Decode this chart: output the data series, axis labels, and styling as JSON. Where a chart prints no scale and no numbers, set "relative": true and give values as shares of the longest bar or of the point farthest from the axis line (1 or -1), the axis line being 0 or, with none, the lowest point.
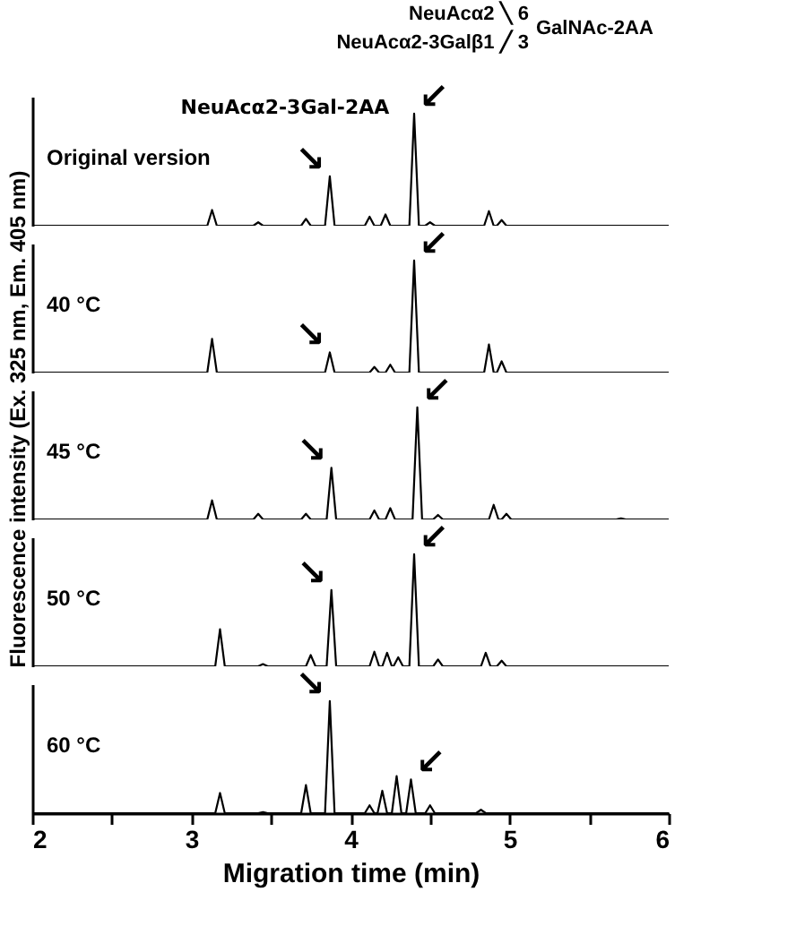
{
  "chart_data": [
    {
      "type": "line",
      "relative": true,
      "xlim": [
        2,
        6
      ],
      "tick_labels": false,
      "series": [
        {
          "color": "#000000",
          "x": [
            2,
            3.1,
            3.13,
            3.16,
            3.39,
            3.42,
            3.45,
            3.69,
            3.72,
            3.75,
            3.84,
            3.87,
            3.9,
            4.09,
            4.12,
            4.15,
            4.19,
            4.22,
            4.25,
            4.37,
            4.4,
            4.43,
            4.47,
            4.5,
            4.53,
            4.84,
            4.87,
            4.9,
            4.92,
            4.95,
            4.98,
            6
          ],
          "values": [
            0,
            0,
            0.14,
            0,
            0,
            0.03,
            0,
            0,
            0.06,
            0,
            0,
            0.44,
            0,
            0,
            0.08,
            0,
            0,
            0.1,
            0,
            0,
            1,
            0,
            0,
            0.03,
            0,
            0,
            0.13,
            0,
            0,
            0.05,
            0,
            0
          ]
        }
      ],
      "annotations": [
        "Original version",
        "NeuAcα2 ╲ 6",
        "NeuAcα2-3Galβ1 ╱ 3",
        "GalNAc-2AA",
        {
          "text": "↘",
          "x": 3.87,
          "y": 0.44
        },
        {
          "text": "↙",
          "x": 4.4,
          "y": 1
        },
        {
          "text": "NeuAcα2-3Gal-2AA",
          "x": 3.87,
          "y": 0.44
        }
      ]
    },
    {
      "type": "line",
      "relative": true,
      "xlim": [
        2,
        6
      ],
      "tick_labels": false,
      "series": [
        {
          "color": "#000000",
          "x": [
            2,
            3.1,
            3.13,
            3.16,
            3.84,
            3.87,
            3.9,
            4.12,
            4.15,
            4.18,
            4.22,
            4.25,
            4.28,
            4.37,
            4.4,
            4.43,
            4.84,
            4.87,
            4.9,
            4.92,
            4.95,
            4.98,
            6
          ],
          "values": [
            0,
            0,
            0.3,
            0,
            0,
            0.18,
            0,
            0,
            0.05,
            0,
            0,
            0.07,
            0,
            0,
            1,
            0,
            0,
            0.25,
            0,
            0,
            0.1,
            0,
            0
          ]
        }
      ],
      "annotations": [
        "40 °C",
        {
          "text": "↘",
          "x": 3.87,
          "y": 0.18
        },
        {
          "text": "↙",
          "x": 4.4,
          "y": 1
        }
      ]
    },
    {
      "type": "line",
      "relative": true,
      "xlim": [
        2,
        6
      ],
      "tick_labels": false,
      "ylabel": "Fluorescence intensity (Ex. 325 nm, Em. 405 nm)",
      "series": [
        {
          "color": "#000000",
          "x": [
            2,
            3.1,
            3.13,
            3.16,
            3.39,
            3.42,
            3.45,
            3.69,
            3.72,
            3.75,
            3.85,
            3.88,
            3.91,
            4.12,
            4.15,
            4.18,
            4.22,
            4.25,
            4.28,
            4.39,
            4.42,
            4.45,
            4.52,
            4.55,
            4.58,
            4.87,
            4.9,
            4.93,
            4.95,
            4.98,
            5.01,
            5.67,
            5.7,
            5.73,
            6
          ],
          "values": [
            0,
            0,
            0.17,
            0,
            0,
            0.05,
            0,
            0,
            0.05,
            0,
            0,
            0.46,
            0,
            0,
            0.08,
            0,
            0,
            0.1,
            0,
            0,
            1,
            0,
            0,
            0.04,
            0,
            0,
            0.13,
            0,
            0,
            0.05,
            0,
            0,
            0.01,
            0,
            0
          ]
        }
      ],
      "annotations": [
        "45 °C",
        {
          "text": "↘",
          "x": 3.88,
          "y": 0.46
        },
        {
          "text": "↙",
          "x": 4.42,
          "y": 1
        }
      ]
    },
    {
      "type": "line",
      "relative": true,
      "xlim": [
        2,
        6
      ],
      "tick_labels": false,
      "series": [
        {
          "color": "#000000",
          "x": [
            2,
            3.15,
            3.18,
            3.21,
            3.42,
            3.45,
            3.48,
            3.72,
            3.75,
            3.78,
            3.85,
            3.88,
            3.91,
            4.12,
            4.15,
            4.18,
            4.2,
            4.23,
            4.26,
            4.27,
            4.3,
            4.33,
            4.37,
            4.4,
            4.43,
            4.52,
            4.55,
            4.58,
            4.82,
            4.85,
            4.88,
            4.92,
            4.95,
            4.98,
            6
          ],
          "values": [
            0,
            0,
            0.33,
            0,
            0,
            0.02,
            0,
            0,
            0.1,
            0,
            0,
            0.68,
            0,
            0,
            0.13,
            0,
            0,
            0.12,
            0,
            0,
            0.08,
            0,
            0,
            1,
            0,
            0,
            0.06,
            0,
            0,
            0.12,
            0,
            0,
            0.05,
            0,
            0
          ]
        }
      ],
      "annotations": [
        "50 °C",
        {
          "text": "↘",
          "x": 3.88,
          "y": 0.68
        },
        {
          "text": "↙",
          "x": 4.4,
          "y": 1
        }
      ]
    },
    {
      "type": "line",
      "relative": true,
      "xlim": [
        2,
        6
      ],
      "tick_labels": "x",
      "xlabel": "Migration time (min)",
      "xticks": [
        2,
        {
          "value": 2.5,
          "label": null
        },
        3,
        {
          "value": 3.5,
          "label": null
        },
        4,
        {
          "value": 4.5,
          "label": null
        },
        5,
        {
          "value": 5.5,
          "label": null
        },
        6
      ],
      "series": [
        {
          "color": "#000000",
          "x": [
            2,
            3.15,
            3.18,
            3.21,
            3.42,
            3.45,
            3.48,
            3.69,
            3.72,
            3.75,
            3.84,
            3.87,
            3.9,
            4.09,
            4.12,
            4.15,
            4.17,
            4.2,
            4.23,
            4.26,
            4.29,
            4.32,
            4.35,
            4.38,
            4.41,
            4.47,
            4.5,
            4.53,
            4.79,
            4.82,
            4.85,
            6
          ],
          "values": [
            0,
            0,
            0.18,
            0,
            0,
            0.01,
            0,
            0,
            0.25,
            0,
            0,
            1,
            0,
            0,
            0.07,
            0,
            0,
            0.2,
            0,
            0,
            0.33,
            0,
            0,
            0.3,
            0,
            0,
            0.07,
            0,
            0,
            0.03,
            0,
            0
          ]
        }
      ],
      "annotations": [
        "60 °C",
        {
          "text": "↘",
          "x": 3.87,
          "y": 1
        },
        {
          "text": "↙",
          "x": 4.38,
          "y": 0.3
        }
      ]
    }
  ]
}
